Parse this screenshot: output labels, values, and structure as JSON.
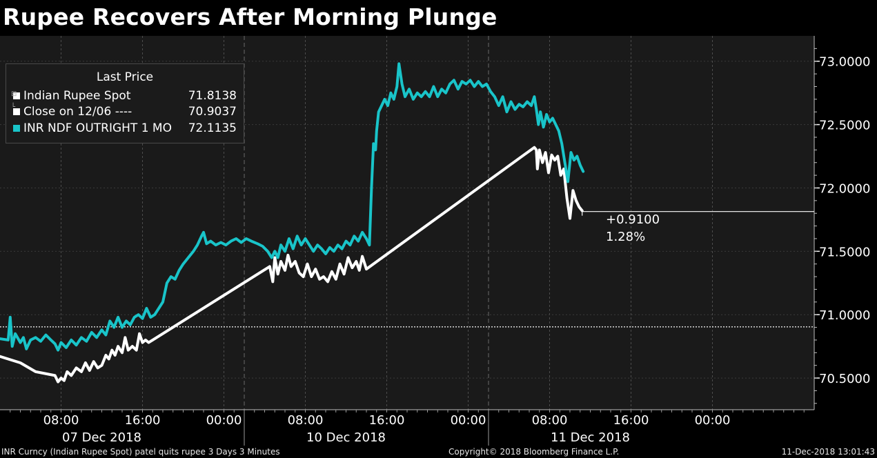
{
  "title": "Rupee Recovers After Morning Plunge",
  "legend": {
    "header": "Last Price",
    "items": [
      {
        "name": "Indian Rupee Spot",
        "value": "71.8138",
        "color": "#ffffff"
      },
      {
        "name": "Close on 12/06 ----",
        "value": "70.9037",
        "color": "#ffffff"
      },
      {
        "name": "INR NDF OUTRIGHT 1 MO",
        "value": "72.1135",
        "color": "#19c4c9"
      }
    ]
  },
  "change": {
    "abs": "+0.9100",
    "pct": "1.28%"
  },
  "footer": {
    "left": "INR Curncy (Indian Rupee Spot) patel quits rupee 3 Days 3 Minutes",
    "center": "Copyright© 2018 Bloomberg Finance L.P.",
    "right": "11-Dec-2018 13:01:43"
  },
  "chart_data": {
    "type": "line",
    "y_axis_side": "right",
    "ylim": [
      70.25,
      73.2
    ],
    "y_ticks": [
      {
        "value": 70.5,
        "label": "70.5000"
      },
      {
        "value": 71.0,
        "label": "71.0000"
      },
      {
        "value": 71.5,
        "label": "71.5000"
      },
      {
        "value": 72.0,
        "label": "72.0000"
      },
      {
        "value": 72.5,
        "label": "72.5000"
      },
      {
        "value": 73.0,
        "label": "73.0000"
      }
    ],
    "x_range_hours": [
      2,
      82
    ],
    "x_ticks": [
      {
        "h": 8,
        "label": "08:00"
      },
      {
        "h": 16,
        "label": "16:00"
      },
      {
        "h": 24,
        "label": "00:00"
      },
      {
        "h": 32,
        "label": "08:00"
      },
      {
        "h": 40,
        "label": "16:00"
      },
      {
        "h": 48,
        "label": "00:00"
      },
      {
        "h": 56,
        "label": "08:00"
      },
      {
        "h": 64,
        "label": "16:00"
      },
      {
        "h": 72,
        "label": "00:00"
      }
    ],
    "day_labels": [
      {
        "h": 12,
        "label": "07 Dec 2018"
      },
      {
        "h": 36,
        "label": "10 Dec 2018"
      },
      {
        "h": 60,
        "label": "11 Dec 2018"
      }
    ],
    "day_separators_h": [
      26,
      50
    ],
    "reference_line": {
      "name": "Close on 12/06",
      "value": 70.9037
    },
    "last_price_line": {
      "value": 71.8138
    },
    "series": [
      {
        "name": "Indian Rupee Spot",
        "color": "#ffffff",
        "points": [
          [
            2,
            70.67
          ],
          [
            4,
            70.62
          ],
          [
            5.5,
            70.55
          ],
          [
            7.4,
            70.52
          ],
          [
            7.7,
            70.47
          ],
          [
            8,
            70.5
          ],
          [
            8.3,
            70.48
          ],
          [
            8.6,
            70.55
          ],
          [
            9,
            70.52
          ],
          [
            9.5,
            70.58
          ],
          [
            10,
            70.55
          ],
          [
            10.4,
            70.62
          ],
          [
            10.8,
            70.56
          ],
          [
            11.2,
            70.63
          ],
          [
            11.6,
            70.58
          ],
          [
            12,
            70.6
          ],
          [
            12.4,
            70.68
          ],
          [
            12.7,
            70.65
          ],
          [
            13,
            70.72
          ],
          [
            13.3,
            70.68
          ],
          [
            13.6,
            70.75
          ],
          [
            14,
            70.7
          ],
          [
            14.3,
            70.82
          ],
          [
            14.6,
            70.72
          ],
          [
            15,
            70.75
          ],
          [
            15.4,
            70.72
          ],
          [
            15.7,
            70.85
          ],
          [
            16,
            70.78
          ],
          [
            16.3,
            70.8
          ],
          [
            16.6,
            70.78
          ],
          [
            17,
            70.8
          ],
          [
            28.5,
            71.38
          ],
          [
            28.8,
            71.26
          ],
          [
            29,
            71.45
          ],
          [
            29.3,
            71.32
          ],
          [
            29.6,
            71.42
          ],
          [
            30,
            71.35
          ],
          [
            30.3,
            71.47
          ],
          [
            30.6,
            71.38
          ],
          [
            31,
            71.42
          ],
          [
            31.4,
            71.33
          ],
          [
            31.8,
            71.3
          ],
          [
            32.2,
            71.4
          ],
          [
            32.6,
            71.3
          ],
          [
            33,
            71.36
          ],
          [
            33.4,
            71.28
          ],
          [
            33.8,
            71.3
          ],
          [
            34.2,
            71.26
          ],
          [
            34.6,
            71.34
          ],
          [
            35,
            71.28
          ],
          [
            35.4,
            71.4
          ],
          [
            35.8,
            71.32
          ],
          [
            36.2,
            71.45
          ],
          [
            36.6,
            71.37
          ],
          [
            37,
            71.42
          ],
          [
            37.3,
            71.35
          ],
          [
            37.6,
            71.46
          ],
          [
            38,
            71.36
          ],
          [
            54.5,
            72.32
          ],
          [
            54.7,
            72.3
          ],
          [
            54.8,
            72.15
          ],
          [
            55,
            72.3
          ],
          [
            55.3,
            72.2
          ],
          [
            55.6,
            72.28
          ],
          [
            55.9,
            72.12
          ],
          [
            56.2,
            72.26
          ],
          [
            56.5,
            72.22
          ],
          [
            56.8,
            72.25
          ],
          [
            57.1,
            72.1
          ],
          [
            57.4,
            72.15
          ],
          [
            57.7,
            71.92
          ],
          [
            58,
            71.76
          ],
          [
            58.3,
            71.98
          ],
          [
            58.6,
            71.9
          ],
          [
            58.9,
            71.85
          ],
          [
            59.2,
            71.82
          ]
        ]
      },
      {
        "name": "INR NDF OUTRIGHT 1 MO",
        "color": "#19c4c9",
        "points": [
          [
            2,
            70.81
          ],
          [
            2.8,
            70.8
          ],
          [
            3,
            70.98
          ],
          [
            3.2,
            70.75
          ],
          [
            3.5,
            70.85
          ],
          [
            4,
            70.78
          ],
          [
            4.3,
            70.82
          ],
          [
            4.6,
            70.73
          ],
          [
            5,
            70.8
          ],
          [
            5.5,
            70.82
          ],
          [
            6,
            70.79
          ],
          [
            6.5,
            70.84
          ],
          [
            7,
            70.8
          ],
          [
            7.4,
            70.77
          ],
          [
            7.7,
            70.72
          ],
          [
            8,
            70.78
          ],
          [
            8.5,
            70.74
          ],
          [
            9,
            70.8
          ],
          [
            9.5,
            70.76
          ],
          [
            10,
            70.82
          ],
          [
            10.5,
            70.79
          ],
          [
            11,
            70.86
          ],
          [
            11.5,
            70.82
          ],
          [
            12,
            70.88
          ],
          [
            12.4,
            70.84
          ],
          [
            12.8,
            70.95
          ],
          [
            13.2,
            70.9
          ],
          [
            13.6,
            70.98
          ],
          [
            14,
            70.9
          ],
          [
            14.4,
            70.95
          ],
          [
            14.8,
            70.92
          ],
          [
            15.2,
            70.98
          ],
          [
            15.6,
            71.0
          ],
          [
            16,
            70.97
          ],
          [
            16.4,
            71.05
          ],
          [
            16.8,
            70.98
          ],
          [
            17.2,
            71.0
          ],
          [
            17.6,
            71.05
          ],
          [
            18,
            71.1
          ],
          [
            18.4,
            71.25
          ],
          [
            18.8,
            71.3
          ],
          [
            19.2,
            71.28
          ],
          [
            19.6,
            71.35
          ],
          [
            20,
            71.4
          ],
          [
            20.5,
            71.45
          ],
          [
            21,
            71.5
          ],
          [
            21.4,
            71.55
          ],
          [
            21.8,
            71.62
          ],
          [
            22,
            71.65
          ],
          [
            22.3,
            71.56
          ],
          [
            22.7,
            71.58
          ],
          [
            23.2,
            71.55
          ],
          [
            23.7,
            71.57
          ],
          [
            24.2,
            71.55
          ],
          [
            24.7,
            71.58
          ],
          [
            25.2,
            71.6
          ],
          [
            25.7,
            71.57
          ],
          [
            26.2,
            71.6
          ],
          [
            26.7,
            71.58
          ],
          [
            27.3,
            71.56
          ],
          [
            27.8,
            71.54
          ],
          [
            28.3,
            71.5
          ],
          [
            28.7,
            71.45
          ],
          [
            29,
            71.5
          ],
          [
            29.3,
            71.45
          ],
          [
            29.6,
            71.55
          ],
          [
            30,
            71.5
          ],
          [
            30.4,
            71.6
          ],
          [
            30.8,
            71.52
          ],
          [
            31.2,
            71.62
          ],
          [
            31.6,
            71.55
          ],
          [
            32,
            71.6
          ],
          [
            32.4,
            71.55
          ],
          [
            32.8,
            71.5
          ],
          [
            33.2,
            71.55
          ],
          [
            33.6,
            71.52
          ],
          [
            34,
            71.48
          ],
          [
            34.4,
            71.53
          ],
          [
            34.8,
            71.5
          ],
          [
            35.2,
            71.55
          ],
          [
            35.6,
            71.52
          ],
          [
            36,
            71.58
          ],
          [
            36.4,
            71.55
          ],
          [
            36.8,
            71.62
          ],
          [
            37.2,
            71.58
          ],
          [
            37.6,
            71.65
          ],
          [
            38,
            71.6
          ],
          [
            38.3,
            71.55
          ],
          [
            38.5,
            72.0
          ],
          [
            38.7,
            72.35
          ],
          [
            38.9,
            72.3
          ],
          [
            39,
            72.45
          ],
          [
            39.2,
            72.6
          ],
          [
            39.5,
            72.65
          ],
          [
            39.8,
            72.7
          ],
          [
            40.1,
            72.65
          ],
          [
            40.4,
            72.75
          ],
          [
            40.7,
            72.7
          ],
          [
            41,
            72.8
          ],
          [
            41.2,
            72.98
          ],
          [
            41.5,
            72.82
          ],
          [
            41.8,
            72.72
          ],
          [
            42.2,
            72.78
          ],
          [
            42.6,
            72.7
          ],
          [
            43,
            72.75
          ],
          [
            43.4,
            72.72
          ],
          [
            43.8,
            72.76
          ],
          [
            44.2,
            72.72
          ],
          [
            44.6,
            72.8
          ],
          [
            45,
            72.72
          ],
          [
            45.4,
            72.78
          ],
          [
            45.8,
            72.75
          ],
          [
            46.2,
            72.82
          ],
          [
            46.6,
            72.85
          ],
          [
            47,
            72.78
          ],
          [
            47.4,
            72.84
          ],
          [
            47.8,
            72.82
          ],
          [
            48.2,
            72.85
          ],
          [
            48.6,
            72.8
          ],
          [
            49,
            72.84
          ],
          [
            49.4,
            72.8
          ],
          [
            49.8,
            72.82
          ],
          [
            50.2,
            72.76
          ],
          [
            50.6,
            72.72
          ],
          [
            51,
            72.65
          ],
          [
            51.4,
            72.72
          ],
          [
            51.8,
            72.6
          ],
          [
            52.2,
            72.68
          ],
          [
            52.6,
            72.62
          ],
          [
            53,
            72.66
          ],
          [
            53.4,
            72.64
          ],
          [
            53.8,
            72.68
          ],
          [
            54.2,
            72.65
          ],
          [
            54.5,
            72.72
          ],
          [
            54.7,
            72.62
          ],
          [
            54.9,
            72.5
          ],
          [
            55.1,
            72.6
          ],
          [
            55.4,
            72.48
          ],
          [
            55.7,
            72.58
          ],
          [
            56,
            72.52
          ],
          [
            56.3,
            72.55
          ],
          [
            56.6,
            72.5
          ],
          [
            56.9,
            72.45
          ],
          [
            57.2,
            72.35
          ],
          [
            57.5,
            72.2
          ],
          [
            57.8,
            72.05
          ],
          [
            58.1,
            72.28
          ],
          [
            58.4,
            72.22
          ],
          [
            58.7,
            72.25
          ],
          [
            59,
            72.18
          ],
          [
            59.3,
            72.13
          ]
        ]
      }
    ]
  }
}
